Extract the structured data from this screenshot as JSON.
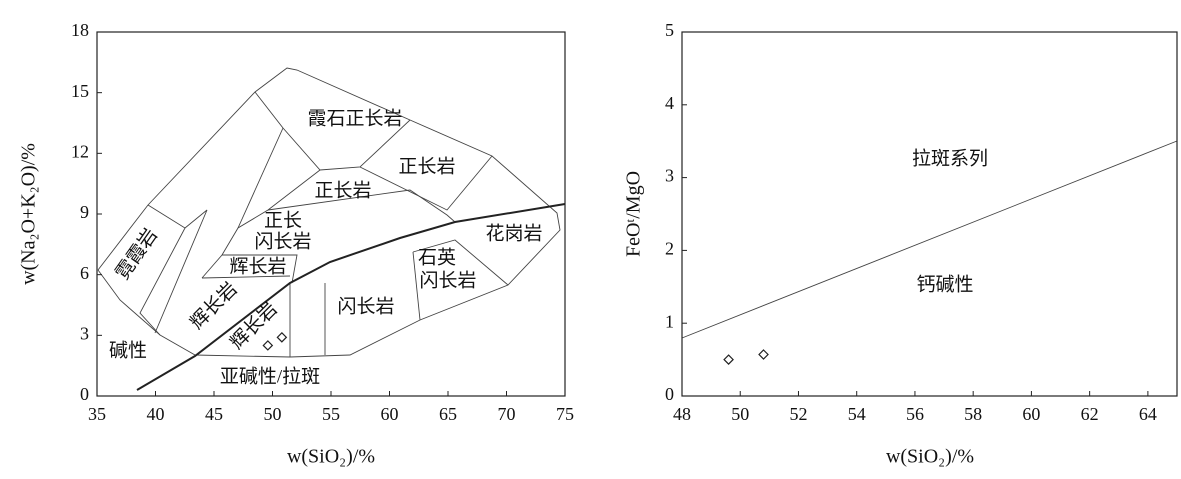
{
  "chart_data": [
    {
      "type": "scatter",
      "xlabel": "w(SiO₂)/%",
      "ylabel": "w(Na₂O+K₂O)/%",
      "x": [
        49.6,
        50.8
      ],
      "values": [
        2.5,
        2.9
      ],
      "marker": "diamond",
      "xlim": [
        35,
        75
      ],
      "xticks": [
        35,
        40,
        45,
        50,
        55,
        60,
        65,
        70,
        75
      ],
      "ylim": [
        0,
        18
      ],
      "yticks": [
        0,
        3,
        6,
        9,
        12,
        15,
        18
      ],
      "annotations": [
        "霞石正长岩",
        "正长岩",
        "正长岩",
        "正长",
        "闪长岩",
        "辉长岩",
        "辉长岩",
        "辉长岩",
        "闪长岩",
        "石英",
        "闪长岩",
        "花岗岩",
        "霓霞岩",
        "碱性",
        "亚碱性/拉斑"
      ]
    },
    {
      "type": "scatter",
      "xlabel": "w(SiO₂)/%",
      "ylabel": "FeOᵗ/MgO",
      "x": [
        49.6,
        50.8
      ],
      "values": [
        0.5,
        0.57
      ],
      "marker": "diamond",
      "xlim": [
        48,
        65
      ],
      "xticks": [
        48,
        50,
        52,
        54,
        56,
        58,
        60,
        62,
        64
      ],
      "ylim": [
        0,
        5
      ],
      "yticks": [
        0,
        1,
        2,
        3,
        4,
        5
      ],
      "annotations": [
        "拉斑系列",
        "钙碱性"
      ]
    }
  ]
}
